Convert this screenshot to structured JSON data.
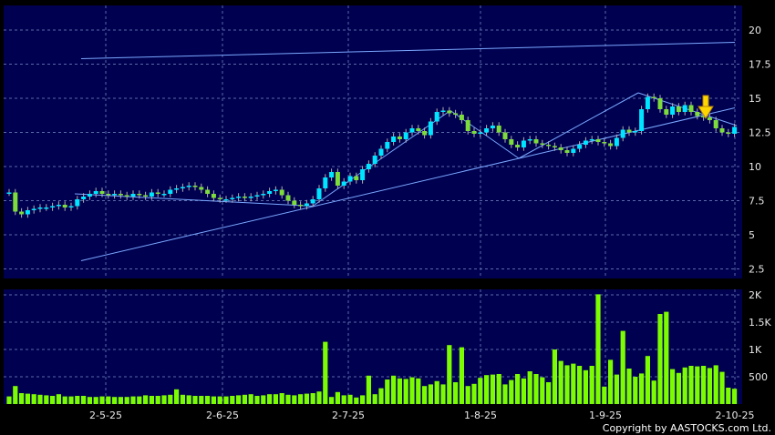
{
  "copyright": "Copyright by AASTOCKS.com Ltd.",
  "colors": {
    "background": "#000000",
    "panel": "#000050",
    "grid": "#5a6aa8",
    "up_candle": "#00e5ff",
    "down_candle": "#7ddc3c",
    "volume_bar": "#7cfc00",
    "trendline": "#7aa8ff",
    "arrow": "#ffd700"
  },
  "icons": {
    "signal_arrow": "down-arrow-icon"
  },
  "chart_data": [
    {
      "type": "candlestick",
      "title": "",
      "x_tick_labels": [
        "2-5-25",
        "2-6-25",
        "2-7-25",
        "1-8-25",
        "1-9-25",
        "2-10-25"
      ],
      "y_ticks": [
        2.5,
        5,
        7.5,
        10,
        12.5,
        15,
        17.5,
        20
      ],
      "y_tick_labels": [
        "2.5",
        "5",
        "7.5",
        "10",
        "12.5",
        "15",
        "17.5",
        "20"
      ],
      "ylim": [
        1.8,
        21.8
      ],
      "grid": true,
      "n_bars": 118,
      "closes": [
        8.1,
        6.7,
        6.5,
        6.8,
        6.9,
        7.0,
        7.0,
        7.1,
        7.2,
        7.0,
        7.1,
        7.6,
        7.8,
        8.0,
        8.2,
        8.0,
        7.9,
        8.0,
        7.9,
        7.8,
        8.0,
        7.9,
        7.8,
        8.1,
        8.0,
        8.0,
        8.3,
        8.4,
        8.5,
        8.6,
        8.5,
        8.3,
        8.0,
        7.7,
        7.6,
        7.6,
        7.7,
        7.8,
        7.7,
        7.8,
        7.9,
        8.0,
        8.2,
        8.3,
        7.9,
        7.5,
        7.2,
        7.1,
        7.3,
        7.6,
        8.4,
        9.2,
        9.6,
        8.6,
        8.9,
        9.3,
        9.0,
        9.8,
        10.2,
        10.8,
        11.3,
        11.8,
        12.2,
        12.0,
        12.5,
        12.8,
        12.6,
        12.3,
        13.3,
        14.0,
        14.1,
        13.9,
        13.8,
        13.4,
        12.6,
        12.4,
        12.5,
        12.8,
        13.0,
        12.5,
        12.0,
        11.6,
        11.4,
        11.9,
        12.0,
        11.7,
        11.6,
        11.5,
        11.4,
        11.2,
        11.0,
        11.3,
        11.6,
        11.9,
        12.0,
        11.8,
        11.7,
        11.5,
        12.1,
        12.7,
        12.5,
        12.6,
        14.2,
        15.1,
        15.0,
        14.2,
        13.8,
        14.4,
        14.0,
        14.5,
        14.0,
        13.7,
        13.6,
        13.4,
        12.8,
        12.5,
        12.4,
        12.9
      ],
      "volume": {
        "y_ticks": [
          500,
          1000,
          1500,
          2000
        ],
        "y_tick_labels": [
          "500",
          "1K",
          "1.5K",
          "2K"
        ],
        "ylim": [
          0,
          2100
        ],
        "values": [
          140,
          330,
          200,
          190,
          180,
          170,
          160,
          150,
          180,
          140,
          140,
          150,
          150,
          130,
          130,
          140,
          140,
          130,
          130,
          130,
          140,
          140,
          160,
          150,
          150,
          160,
          170,
          270,
          170,
          160,
          150,
          150,
          150,
          140,
          140,
          140,
          150,
          160,
          170,
          180,
          150,
          160,
          180,
          180,
          200,
          170,
          160,
          180,
          190,
          200,
          230,
          1140,
          130,
          220,
          160,
          170,
          120,
          160,
          520,
          180,
          290,
          450,
          520,
          470,
          460,
          490,
          470,
          330,
          360,
          420,
          360,
          1080,
          400,
          1040,
          330,
          370,
          480,
          530,
          540,
          550,
          360,
          440,
          550,
          470,
          600,
          550,
          490,
          400,
          1000,
          790,
          710,
          740,
          700,
          620,
          700,
          2010,
          320,
          810,
          540,
          1340,
          650,
          500,
          560,
          880,
          430,
          1650,
          1690,
          640,
          570,
          670,
          700,
          690,
          700,
          660,
          710,
          590,
          300,
          280
        ]
      }
    }
  ]
}
